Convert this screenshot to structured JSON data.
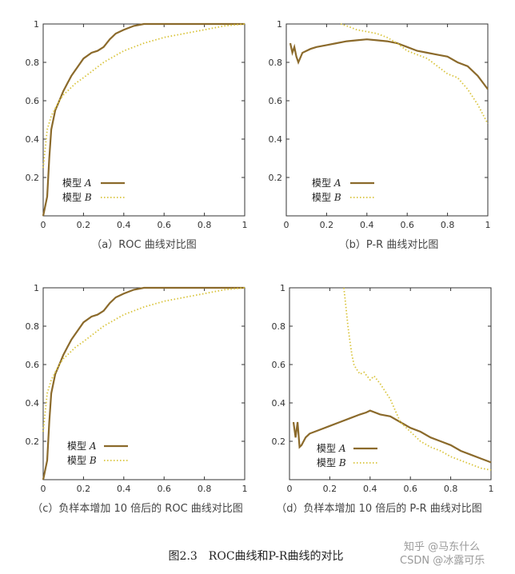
{
  "figure_caption": "图2.3　ROC曲线和P-R曲线的对比",
  "watermark": {
    "zhihu": "知乎 @马东什么",
    "csdn": "CSDN @冰露可乐"
  },
  "colors": {
    "model_a": "#8B6A2B",
    "model_b": "#D9C43C",
    "axis": "#333333"
  },
  "chart_data": [
    {
      "type": "line",
      "panel": "a",
      "caption": "（a）ROC 曲线对比图",
      "xlim": [
        0,
        1
      ],
      "ylim": [
        0,
        1
      ],
      "xticks": [
        "0",
        "0.2",
        "0.4",
        "0.6",
        "0.8",
        "1"
      ],
      "yticks": [
        "",
        "0.2",
        "0.4",
        "0.6",
        "0.8",
        "1"
      ],
      "legend": {
        "position": "bottom-left",
        "entries": [
          {
            "label": "模型",
            "italic": "A"
          },
          {
            "label": "模型",
            "italic": "B"
          }
        ]
      },
      "series": [
        {
          "name": "模型 A",
          "style": "solid",
          "x": [
            0,
            0.01,
            0.02,
            0.03,
            0.04,
            0.05,
            0.06,
            0.08,
            0.1,
            0.12,
            0.14,
            0.16,
            0.18,
            0.2,
            0.24,
            0.27,
            0.3,
            0.33,
            0.36,
            0.4,
            0.45,
            0.5,
            0.6,
            0.7,
            0.8,
            0.9,
            1
          ],
          "y": [
            0,
            0.05,
            0.1,
            0.3,
            0.45,
            0.5,
            0.55,
            0.6,
            0.65,
            0.69,
            0.73,
            0.76,
            0.79,
            0.82,
            0.85,
            0.86,
            0.88,
            0.92,
            0.95,
            0.97,
            0.99,
            1,
            1,
            1,
            1,
            1,
            1
          ]
        },
        {
          "name": "模型 B",
          "style": "dotted",
          "x": [
            0,
            0.01,
            0.02,
            0.04,
            0.06,
            0.08,
            0.1,
            0.13,
            0.16,
            0.2,
            0.25,
            0.3,
            0.35,
            0.4,
            0.5,
            0.6,
            0.7,
            0.8,
            0.9,
            1
          ],
          "y": [
            0.25,
            0.35,
            0.45,
            0.52,
            0.56,
            0.6,
            0.63,
            0.66,
            0.69,
            0.72,
            0.76,
            0.8,
            0.83,
            0.86,
            0.9,
            0.93,
            0.95,
            0.97,
            0.99,
            1
          ]
        }
      ]
    },
    {
      "type": "line",
      "panel": "b",
      "caption": "（b）P-R 曲线对比图",
      "xlim": [
        0,
        1
      ],
      "ylim": [
        0,
        1
      ],
      "xticks": [
        "0",
        "0.2",
        "0.4",
        "0.6",
        "0.8",
        "1"
      ],
      "yticks": [
        "",
        "0.2",
        "0.4",
        "0.6",
        "0.8",
        "1"
      ],
      "legend": {
        "position": "bottom-left",
        "entries": [
          {
            "label": "模型",
            "italic": "A"
          },
          {
            "label": "模型",
            "italic": "B"
          }
        ]
      },
      "series": [
        {
          "name": "模型 A",
          "style": "solid",
          "x": [
            0.02,
            0.03,
            0.04,
            0.05,
            0.06,
            0.08,
            0.1,
            0.12,
            0.15,
            0.2,
            0.25,
            0.3,
            0.35,
            0.4,
            0.45,
            0.5,
            0.55,
            0.6,
            0.65,
            0.7,
            0.75,
            0.8,
            0.85,
            0.9,
            0.95,
            1
          ],
          "y": [
            0.9,
            0.85,
            0.88,
            0.83,
            0.8,
            0.85,
            0.86,
            0.87,
            0.88,
            0.89,
            0.9,
            0.91,
            0.915,
            0.92,
            0.915,
            0.91,
            0.9,
            0.88,
            0.86,
            0.85,
            0.84,
            0.83,
            0.8,
            0.78,
            0.73,
            0.66
          ]
        },
        {
          "name": "模型 B",
          "style": "dotted",
          "x": [
            0.27,
            0.3,
            0.35,
            0.4,
            0.45,
            0.5,
            0.55,
            0.6,
            0.65,
            0.7,
            0.75,
            0.8,
            0.85,
            0.9,
            0.95,
            1
          ],
          "y": [
            1,
            0.99,
            0.97,
            0.96,
            0.95,
            0.93,
            0.9,
            0.86,
            0.84,
            0.82,
            0.78,
            0.74,
            0.72,
            0.66,
            0.58,
            0.48
          ]
        }
      ]
    },
    {
      "type": "line",
      "panel": "c",
      "caption": "（c）负样本增加 10 倍后的 ROC 曲线对比图",
      "xlim": [
        0,
        1
      ],
      "ylim": [
        0,
        1
      ],
      "xticks": [
        "0",
        "0.2",
        "0.4",
        "0.6",
        "0.8",
        "1"
      ],
      "yticks": [
        "",
        "0.2",
        "0.4",
        "0.6",
        "0.8",
        "1"
      ],
      "legend": {
        "position": "bottom-right",
        "entries": [
          {
            "label": "模型",
            "italic": "A"
          },
          {
            "label": "模型",
            "italic": "B"
          }
        ]
      },
      "series": [
        {
          "name": "模型 A",
          "style": "solid",
          "x": [
            0,
            0.01,
            0.02,
            0.03,
            0.04,
            0.05,
            0.06,
            0.08,
            0.1,
            0.12,
            0.14,
            0.16,
            0.18,
            0.2,
            0.24,
            0.27,
            0.3,
            0.33,
            0.36,
            0.4,
            0.45,
            0.5,
            0.6,
            0.7,
            0.8,
            0.9,
            1
          ],
          "y": [
            0,
            0.05,
            0.1,
            0.3,
            0.45,
            0.5,
            0.55,
            0.6,
            0.65,
            0.69,
            0.73,
            0.76,
            0.79,
            0.82,
            0.85,
            0.86,
            0.88,
            0.92,
            0.95,
            0.97,
            0.99,
            1,
            1,
            1,
            1,
            1,
            1
          ]
        },
        {
          "name": "模型 B",
          "style": "dotted",
          "x": [
            0,
            0.01,
            0.02,
            0.04,
            0.06,
            0.08,
            0.1,
            0.13,
            0.16,
            0.2,
            0.25,
            0.3,
            0.35,
            0.4,
            0.5,
            0.6,
            0.7,
            0.8,
            0.9,
            1
          ],
          "y": [
            0.25,
            0.35,
            0.45,
            0.52,
            0.56,
            0.6,
            0.63,
            0.66,
            0.69,
            0.72,
            0.76,
            0.8,
            0.83,
            0.86,
            0.9,
            0.93,
            0.95,
            0.97,
            0.99,
            1
          ]
        }
      ]
    },
    {
      "type": "line",
      "panel": "d",
      "caption": "（d）负样本增加 10 倍后的 P-R 曲线对比图",
      "xlim": [
        0,
        1
      ],
      "ylim": [
        0,
        1
      ],
      "xticks": [
        "0",
        "0.2",
        "0.4",
        "0.6",
        "0.8",
        "1"
      ],
      "yticks": [
        "",
        "0.2",
        "0.4",
        "0.6",
        "0.8",
        "1"
      ],
      "legend": {
        "position": "bottom-left",
        "entries": [
          {
            "label": "模型",
            "italic": "A"
          },
          {
            "label": "模型",
            "italic": "B"
          }
        ]
      },
      "series": [
        {
          "name": "模型 A",
          "style": "solid",
          "x": [
            0.02,
            0.03,
            0.04,
            0.05,
            0.06,
            0.08,
            0.1,
            0.15,
            0.2,
            0.25,
            0.3,
            0.35,
            0.38,
            0.4,
            0.45,
            0.5,
            0.55,
            0.6,
            0.65,
            0.7,
            0.75,
            0.8,
            0.85,
            0.9,
            0.95,
            1
          ],
          "y": [
            0.3,
            0.22,
            0.3,
            0.17,
            0.18,
            0.22,
            0.24,
            0.26,
            0.28,
            0.3,
            0.32,
            0.34,
            0.35,
            0.36,
            0.34,
            0.33,
            0.3,
            0.27,
            0.25,
            0.22,
            0.2,
            0.18,
            0.15,
            0.13,
            0.11,
            0.09
          ]
        },
        {
          "name": "模型 B",
          "style": "dotted",
          "x": [
            0.27,
            0.28,
            0.29,
            0.3,
            0.31,
            0.32,
            0.33,
            0.35,
            0.37,
            0.4,
            0.42,
            0.45,
            0.5,
            0.55,
            0.6,
            0.65,
            0.7,
            0.75,
            0.8,
            0.85,
            0.9,
            0.95,
            1
          ],
          "y": [
            1,
            0.9,
            0.8,
            0.72,
            0.65,
            0.6,
            0.58,
            0.55,
            0.56,
            0.52,
            0.54,
            0.5,
            0.42,
            0.3,
            0.25,
            0.2,
            0.17,
            0.15,
            0.12,
            0.1,
            0.08,
            0.06,
            0.05
          ]
        }
      ]
    }
  ]
}
